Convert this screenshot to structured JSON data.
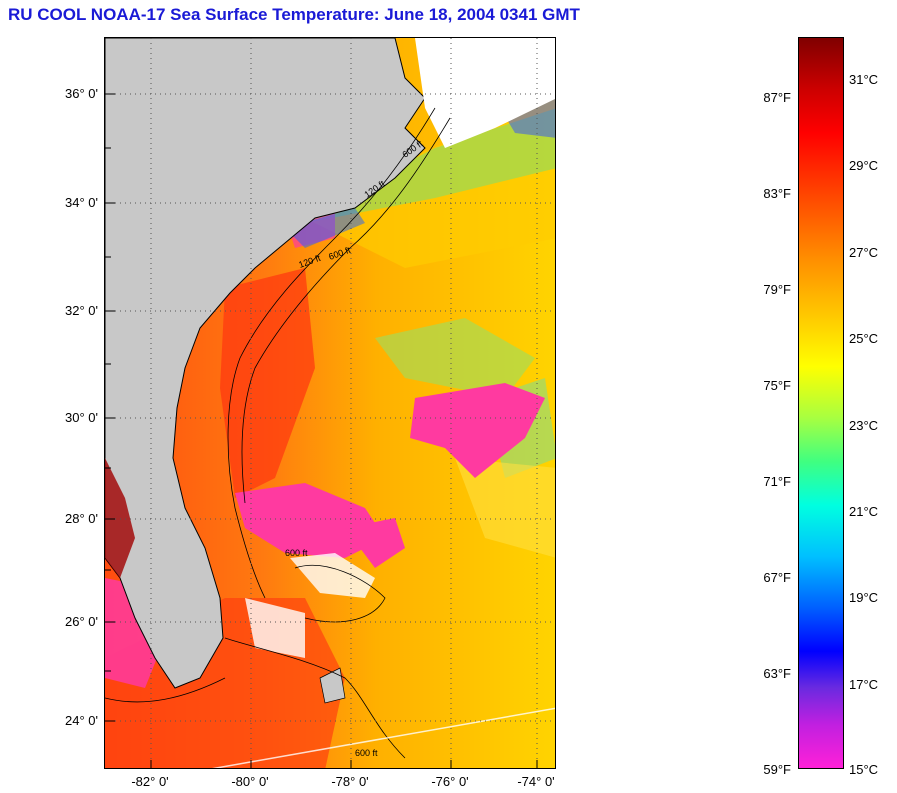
{
  "title": "RU COOL  NOAA-17  Sea Surface Temperature:  June 18, 2004 0341 GMT",
  "map": {
    "lat_labels": [
      "36° 0'",
      "34° 0'",
      "32° 0'",
      "30° 0'",
      "28° 0'",
      "26° 0'",
      "24° 0'"
    ],
    "lon_labels": [
      "-82° 0'",
      "-80° 0'",
      "-78° 0'",
      "-76° 0'",
      "-74° 0'"
    ],
    "contour_labels": [
      "120 ft",
      "600 ft",
      "120 ft",
      "600 ft",
      "600 ft",
      "600 ft"
    ]
  },
  "colorbar": {
    "fahrenheit": [
      "87°F",
      "83°F",
      "79°F",
      "75°F",
      "71°F",
      "67°F",
      "63°F",
      "59°F"
    ],
    "celsius": [
      "31°C",
      "29°C",
      "27°C",
      "25°C",
      "23°C",
      "21°C",
      "19°C",
      "17°C",
      "15°C"
    ],
    "colors": {
      "land": "#c8c8c8",
      "cloud_mask": "#ff3aa0",
      "warm": "#ff5a10",
      "mid": "#ffb400",
      "cool": "#40e0ff"
    }
  }
}
